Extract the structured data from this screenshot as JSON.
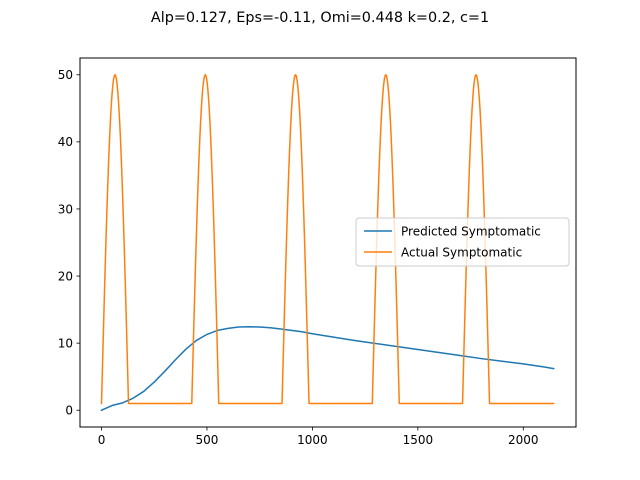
{
  "figure": {
    "title": "Alp=0.127, Eps=-0.11, Omi=0.448 k=0.2, c=1"
  },
  "chart_data": {
    "type": "line",
    "title": "Alp=0.127, Eps=-0.11, Omi=0.448 k=0.2, c=1",
    "xlabel": "",
    "ylabel": "",
    "xlim": [
      -102,
      2250
    ],
    "ylim": [
      -2.5,
      52.5
    ],
    "x_ticks": [
      0,
      500,
      1000,
      1500,
      2000
    ],
    "y_ticks": [
      0,
      10,
      20,
      30,
      40,
      50
    ],
    "grid": false,
    "legend_position": "center-right",
    "series": [
      {
        "name": "Predicted Symptomatic",
        "color": "#1f77b4",
        "x": [
          0,
          50,
          100,
          150,
          200,
          250,
          300,
          350,
          400,
          450,
          500,
          550,
          600,
          650,
          700,
          750,
          800,
          850,
          900,
          950,
          1000,
          1100,
          1200,
          1300,
          1400,
          1500,
          1600,
          1700,
          1800,
          1900,
          2000,
          2100,
          2144
        ],
        "y": [
          0,
          0.7,
          1.1,
          1.8,
          2.8,
          4.2,
          5.8,
          7.5,
          9.1,
          10.4,
          11.3,
          11.9,
          12.2,
          12.4,
          12.45,
          12.4,
          12.3,
          12.1,
          11.9,
          11.7,
          11.4,
          10.9,
          10.4,
          9.95,
          9.5,
          9.05,
          8.6,
          8.15,
          7.7,
          7.3,
          6.9,
          6.45,
          6.2
        ]
      },
      {
        "name": "Actual Symptomatic",
        "color": "#ff7f0e",
        "pulse": {
          "first_start": 0,
          "period": 428,
          "active_duration": 128,
          "count": 5,
          "peak": 50,
          "baseline": 1,
          "end": 2144
        }
      }
    ]
  }
}
